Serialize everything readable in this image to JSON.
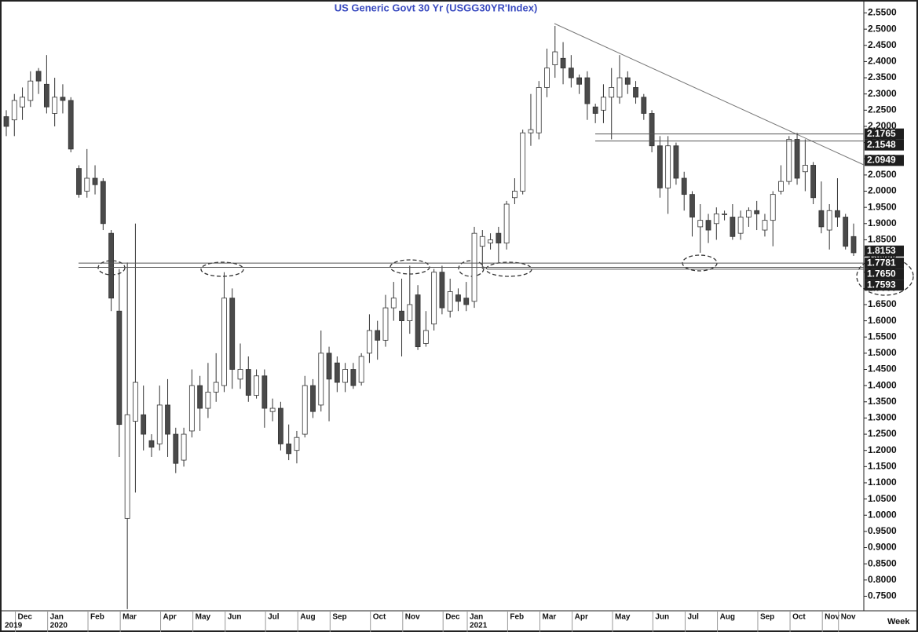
{
  "chart_data": {
    "type": "candlestick",
    "title": "US  Generic  Govt  30  Yr  (USGG30YR'Index)",
    "x_axis_label": "Week",
    "categories": [
      null,
      null,
      "Dec",
      null,
      null,
      null,
      "Jan",
      null,
      null,
      null,
      null,
      "Feb",
      null,
      null,
      null,
      "Mar",
      null,
      null,
      null,
      null,
      "Apr",
      null,
      null,
      null,
      "May",
      null,
      null,
      null,
      "Jun",
      null,
      null,
      null,
      null,
      "Jul",
      null,
      null,
      null,
      "Aug",
      null,
      null,
      null,
      "Sep",
      null,
      null,
      null,
      null,
      "Oct",
      null,
      null,
      null,
      "Nov",
      null,
      null,
      null,
      null,
      "Dec",
      null,
      null,
      "Jan",
      null,
      null,
      null,
      null,
      "Feb",
      null,
      null,
      null,
      "Mar",
      null,
      null,
      null,
      "Apr",
      null,
      null,
      null,
      null,
      "May",
      null,
      null,
      null,
      null,
      "Jun",
      null,
      null,
      null,
      "Jul",
      null,
      null,
      null,
      "Aug",
      null,
      null,
      null,
      null,
      "Sep",
      null,
      null,
      null,
      "Oct",
      null,
      null,
      null,
      "Nov",
      null,
      "Nov",
      null
    ],
    "years": [
      "2019",
      null,
      null,
      null,
      null,
      null,
      "2020",
      null,
      null,
      null,
      null,
      null,
      null,
      null,
      null,
      null,
      null,
      null,
      null,
      null,
      null,
      null,
      null,
      null,
      null,
      null,
      null,
      null,
      null,
      null,
      null,
      null,
      null,
      null,
      null,
      null,
      null,
      null,
      null,
      null,
      null,
      null,
      null,
      null,
      null,
      null,
      null,
      null,
      null,
      null,
      null,
      null,
      null,
      null,
      null,
      null,
      null,
      null,
      "2021",
      null,
      null,
      null,
      null,
      null,
      null,
      null,
      null,
      null,
      null,
      null,
      null,
      null,
      null,
      null,
      null,
      null,
      null,
      null,
      null,
      null,
      null,
      null,
      null,
      null,
      null,
      null,
      null,
      null,
      null,
      null,
      null,
      null,
      null,
      null,
      null,
      null,
      null,
      null,
      null,
      null,
      null,
      null,
      null,
      null,
      null,
      null
    ],
    "open": [
      2.23,
      2.22,
      2.26,
      2.28,
      2.37,
      2.33,
      2.24,
      2.29,
      2.28,
      2.07,
      2.0,
      2.04,
      2.03,
      1.87,
      1.63,
      0.99,
      1.29,
      1.31,
      1.23,
      1.22,
      1.34,
      1.25,
      1.17,
      1.26,
      1.4,
      1.33,
      1.38,
      1.4,
      1.67,
      1.42,
      1.45,
      1.37,
      1.43,
      1.32,
      1.33,
      1.22,
      1.2,
      1.25,
      1.4,
      1.34,
      1.5,
      1.47,
      1.41,
      1.45,
      1.41,
      1.5,
      1.57,
      1.54,
      1.64,
      1.63,
      1.6,
      1.68,
      1.53,
      1.59,
      1.75,
      1.63,
      1.68,
      1.67,
      1.66,
      1.83,
      1.84,
      1.87,
      1.84,
      1.98,
      2.0,
      2.18,
      2.18,
      2.32,
      2.39,
      2.41,
      2.38,
      2.35,
      2.35,
      2.26,
      2.25,
      2.29,
      2.29,
      2.35,
      2.32,
      2.29,
      2.24,
      2.14,
      2.01,
      2.14,
      2.04,
      1.99,
      1.89,
      1.91,
      1.9,
      1.93,
      1.92,
      1.87,
      1.92,
      1.94,
      1.88,
      1.91,
      2.0,
      2.03,
      2.16,
      2.06,
      2.08,
      1.94,
      1.88,
      1.94,
      1.92,
      1.86
    ],
    "high": [
      2.25,
      2.3,
      2.32,
      2.37,
      2.38,
      2.42,
      2.35,
      2.33,
      2.29,
      2.08,
      2.13,
      2.08,
      2.04,
      1.88,
      1.76,
      1.78,
      1.9,
      1.4,
      1.25,
      1.4,
      1.42,
      1.27,
      1.27,
      1.45,
      1.43,
      1.47,
      1.5,
      1.75,
      1.7,
      1.53,
      1.49,
      1.45,
      1.45,
      1.36,
      1.35,
      1.28,
      1.26,
      1.43,
      1.42,
      1.57,
      1.52,
      1.49,
      1.47,
      1.47,
      1.5,
      1.62,
      1.6,
      1.68,
      1.72,
      1.73,
      1.77,
      1.71,
      1.63,
      1.76,
      1.77,
      1.73,
      1.7,
      1.72,
      1.89,
      1.88,
      1.87,
      1.89,
      1.97,
      2.04,
      2.19,
      2.3,
      2.34,
      2.44,
      2.51,
      2.46,
      2.42,
      2.36,
      2.37,
      2.27,
      2.33,
      2.38,
      2.42,
      2.37,
      2.34,
      2.3,
      2.25,
      2.17,
      2.17,
      2.15,
      2.06,
      2.0,
      1.96,
      1.93,
      1.95,
      1.94,
      1.96,
      1.94,
      1.95,
      1.97,
      1.93,
      2.0,
      2.08,
      2.17,
      2.18,
      2.16,
      2.09,
      2.03,
      1.96,
      2.04,
      1.93,
      1.9
    ],
    "low": [
      2.17,
      2.17,
      2.22,
      2.26,
      2.3,
      2.24,
      2.2,
      2.24,
      2.12,
      1.98,
      1.98,
      1.99,
      1.88,
      1.63,
      1.18,
      0.71,
      1.07,
      1.2,
      1.18,
      1.2,
      1.18,
      1.13,
      1.15,
      1.24,
      1.26,
      1.3,
      1.35,
      1.38,
      1.39,
      1.39,
      1.35,
      1.36,
      1.27,
      1.29,
      1.2,
      1.17,
      1.16,
      1.24,
      1.3,
      1.32,
      1.29,
      1.38,
      1.38,
      1.39,
      1.4,
      1.47,
      1.48,
      1.52,
      1.6,
      1.49,
      1.56,
      1.51,
      1.52,
      1.57,
      1.62,
      1.61,
      1.63,
      1.63,
      1.64,
      1.76,
      1.82,
      1.78,
      1.82,
      1.96,
      1.99,
      2.14,
      2.16,
      2.29,
      2.35,
      2.33,
      2.32,
      2.3,
      2.22,
      2.21,
      2.21,
      2.16,
      2.27,
      2.3,
      2.27,
      2.22,
      2.12,
      1.98,
      1.93,
      2.02,
      1.94,
      1.86,
      1.81,
      1.84,
      1.85,
      1.91,
      1.85,
      1.85,
      1.89,
      1.88,
      1.86,
      1.83,
      1.99,
      2.02,
      2.02,
      2.0,
      1.96,
      1.87,
      1.82,
      1.89,
      1.82,
      1.8
    ],
    "close": [
      2.2,
      2.28,
      2.29,
      2.34,
      2.34,
      2.26,
      2.29,
      2.28,
      2.13,
      1.99,
      2.04,
      2.02,
      1.9,
      1.67,
      1.28,
      1.31,
      1.41,
      1.25,
      1.21,
      1.34,
      1.25,
      1.16,
      1.25,
      1.4,
      1.33,
      1.38,
      1.41,
      1.67,
      1.45,
      1.45,
      1.37,
      1.43,
      1.33,
      1.33,
      1.22,
      1.19,
      1.24,
      1.4,
      1.32,
      1.5,
      1.42,
      1.41,
      1.45,
      1.4,
      1.49,
      1.57,
      1.54,
      1.64,
      1.67,
      1.6,
      1.65,
      1.52,
      1.57,
      1.75,
      1.64,
      1.69,
      1.66,
      1.65,
      1.87,
      1.86,
      1.85,
      1.84,
      1.96,
      2.0,
      2.18,
      2.19,
      2.32,
      2.38,
      2.43,
      2.38,
      2.35,
      2.33,
      2.27,
      2.24,
      2.29,
      2.32,
      2.35,
      2.33,
      2.29,
      2.24,
      2.14,
      2.01,
      2.14,
      2.04,
      1.99,
      1.92,
      1.91,
      1.88,
      1.93,
      1.93,
      1.86,
      1.92,
      1.94,
      1.93,
      1.91,
      1.99,
      2.03,
      2.16,
      2.04,
      2.08,
      1.98,
      1.89,
      1.94,
      1.92,
      1.83,
      1.81
    ],
    "up_color": "#ffffff",
    "down_color": "#4a4a4a",
    "ylim": [
      0.705,
      2.59
    ],
    "yticks": [
      {
        "value": 0.75,
        "label": "0.7500"
      },
      {
        "value": 0.8,
        "label": "0.8000"
      },
      {
        "value": 0.85,
        "label": "0.8500"
      },
      {
        "value": 0.9,
        "label": "0.9000"
      },
      {
        "value": 0.95,
        "label": "0.9500"
      },
      {
        "value": 1.0,
        "label": "1.0000"
      },
      {
        "value": 1.05,
        "label": "1.0500"
      },
      {
        "value": 1.1,
        "label": "1.1000"
      },
      {
        "value": 1.15,
        "label": "1.1500"
      },
      {
        "value": 1.2,
        "label": "1.2000"
      },
      {
        "value": 1.25,
        "label": "1.2500"
      },
      {
        "value": 1.3,
        "label": "1.3000"
      },
      {
        "value": 1.35,
        "label": "1.3500"
      },
      {
        "value": 1.4,
        "label": "1.4000"
      },
      {
        "value": 1.45,
        "label": "1.4500"
      },
      {
        "value": 1.5,
        "label": "1.5000"
      },
      {
        "value": 1.55,
        "label": "1.5500"
      },
      {
        "value": 1.6,
        "label": "1.6000"
      },
      {
        "value": 1.65,
        "label": "1.6500"
      },
      {
        "value": 1.7,
        "label": "1.7000"
      },
      {
        "value": 1.75,
        "label": "1.7500"
      },
      {
        "value": 1.8,
        "label": "1.8000"
      },
      {
        "value": 1.85,
        "label": "1.8500"
      },
      {
        "value": 1.9,
        "label": "1.9000"
      },
      {
        "value": 1.95,
        "label": "1.9500"
      },
      {
        "value": 2.0,
        "label": "2.0000"
      },
      {
        "value": 2.05,
        "label": "2.0500"
      },
      {
        "value": 2.1,
        "label": "2.1000"
      },
      {
        "value": 2.15,
        "label": "2.1500"
      },
      {
        "value": 2.2,
        "label": "2.2000"
      },
      {
        "value": 2.25,
        "label": "2.2500"
      },
      {
        "value": 2.3,
        "label": "2.3000"
      },
      {
        "value": 2.35,
        "label": "2.3500"
      },
      {
        "value": 2.4,
        "label": "2.4000"
      },
      {
        "value": 2.45,
        "label": "2.4500"
      },
      {
        "value": 2.5,
        "label": "2.5000"
      },
      {
        "value": 2.55,
        "label": "2.5500"
      }
    ],
    "price_labels": [
      2.1765,
      2.1548,
      2.0949,
      1.8153,
      1.7781,
      {
        "value": 1.765,
        "label": "1.7650"
      },
      1.7593
    ]
  }
}
